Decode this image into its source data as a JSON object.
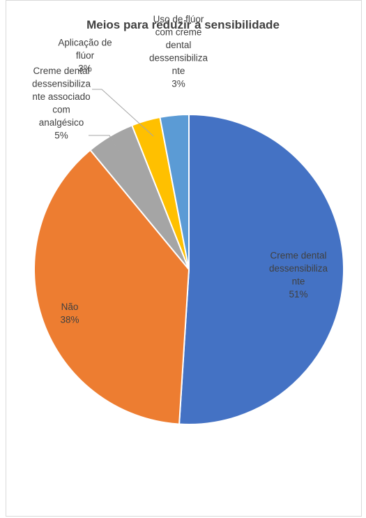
{
  "chart_data": {
    "type": "pie",
    "title": "Meios para reduzir a sensibilidade",
    "series": [
      {
        "categories": [
          "Creme dental dessensibilizante",
          "Não",
          "Creme dental dessensibilizante associado com analgésico",
          "Aplicação de flúor",
          "Uso de flúor com creme dental dessensibilizante"
        ],
        "values": [
          51,
          38,
          5,
          3,
          3
        ]
      }
    ],
    "slices": [
      {
        "label_lines": [
          "Creme dental",
          "dessensibiliza",
          "nte"
        ],
        "percent": "51%",
        "value": 51,
        "color": "#4472C4"
      },
      {
        "label_lines": [
          "Não"
        ],
        "percent": "38%",
        "value": 38,
        "color": "#ED7D31"
      },
      {
        "label_lines": [
          "Creme dental",
          "dessensibiliza",
          "nte associado",
          "com",
          "analgésico"
        ],
        "percent": "5%",
        "value": 5,
        "color": "#A5A5A5"
      },
      {
        "label_lines": [
          "Aplicação de",
          "flúor"
        ],
        "percent": "3%",
        "value": 3,
        "color": "#FFC000"
      },
      {
        "label_lines": [
          "Uso de flúor",
          "com creme",
          "dental",
          "dessensibiliza",
          "nte"
        ],
        "percent": "3%",
        "value": 3,
        "color": "#5B9BD5"
      }
    ],
    "legend": "none"
  }
}
